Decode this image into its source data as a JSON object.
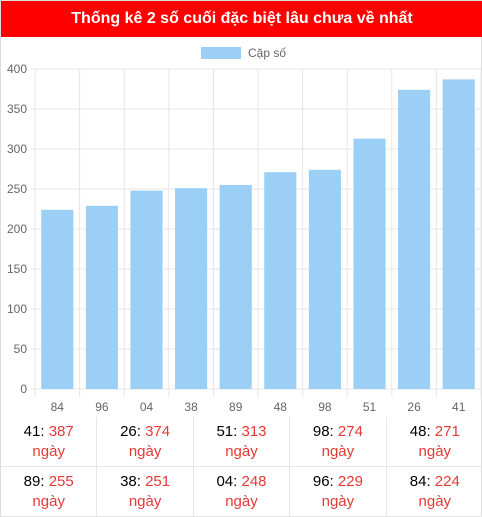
{
  "header": {
    "title": "Thống kê 2 số cuối đặc biệt lâu chưa về nhất"
  },
  "chart_data": {
    "type": "bar",
    "categories": [
      "84",
      "96",
      "04",
      "38",
      "89",
      "48",
      "98",
      "51",
      "26",
      "41"
    ],
    "series": [
      {
        "name": "Cặp số",
        "values": [
          224,
          229,
          248,
          251,
          255,
          271,
          274,
          313,
          374,
          387
        ],
        "color": "#9bcff5"
      }
    ],
    "ylim": [
      0,
      400
    ],
    "yticks": [
      "0",
      "50",
      "100",
      "150",
      "200",
      "250",
      "300",
      "350",
      "400"
    ],
    "grid": true,
    "legend": "top-center"
  },
  "stats": [
    {
      "num": "41",
      "value": "387",
      "unit": "ngày"
    },
    {
      "num": "26",
      "value": "374",
      "unit": "ngày"
    },
    {
      "num": "51",
      "value": "313",
      "unit": "ngày"
    },
    {
      "num": "98",
      "value": "274",
      "unit": "ngày"
    },
    {
      "num": "48",
      "value": "271",
      "unit": "ngày"
    },
    {
      "num": "89",
      "value": "255",
      "unit": "ngày"
    },
    {
      "num": "38",
      "value": "251",
      "unit": "ngày"
    },
    {
      "num": "04",
      "value": "248",
      "unit": "ngày"
    },
    {
      "num": "96",
      "value": "229",
      "unit": "ngày"
    },
    {
      "num": "84",
      "value": "224",
      "unit": "ngày"
    }
  ]
}
